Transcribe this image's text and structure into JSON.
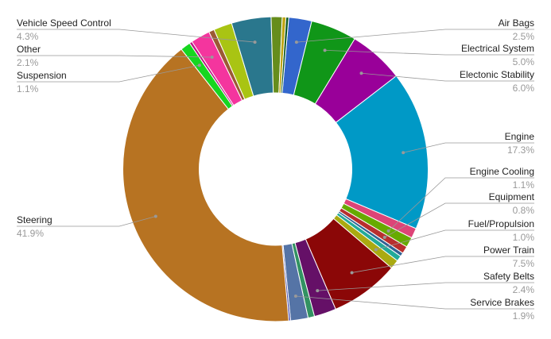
{
  "chart_data": {
    "type": "pie",
    "donut": true,
    "series": [
      {
        "name": "Air Bags",
        "value": 2.5,
        "label": "2.5%",
        "color": "#3366CC",
        "labeled": true
      },
      {
        "name": "Electrical System",
        "value": 5.0,
        "label": "5.0%",
        "color": "#109618",
        "labeled": true
      },
      {
        "name": "Electonic Stability",
        "value": 6.0,
        "label": "6.0%",
        "color": "#990099",
        "labeled": true
      },
      {
        "name": "Engine",
        "value": 17.3,
        "label": "17.3%",
        "color": "#0099C6",
        "labeled": true
      },
      {
        "name": "",
        "value": 1.1,
        "label": "",
        "color": "#DD4477",
        "labeled": false
      },
      {
        "name": "Engine Cooling",
        "value": 1.1,
        "label": "1.1%",
        "color": "#66AA00",
        "labeled": true
      },
      {
        "name": "Equipment",
        "value": 0.8,
        "label": "0.8%",
        "color": "#B82E2E",
        "labeled": true
      },
      {
        "name": "",
        "value": 0.4,
        "label": "",
        "color": "#316395",
        "labeled": false
      },
      {
        "name": "",
        "value": 0.6,
        "label": "",
        "color": "#22AA99",
        "labeled": false
      },
      {
        "name": "Fuel/Propulsion",
        "value": 1.0,
        "label": "1.0%",
        "color": "#AAAA11",
        "labeled": true
      },
      {
        "name": "Power Train",
        "value": 7.5,
        "label": "7.5%",
        "color": "#8B0707",
        "labeled": true
      },
      {
        "name": "Safety Belts",
        "value": 2.4,
        "label": "2.4%",
        "color": "#651067",
        "labeled": true
      },
      {
        "name": "",
        "value": 0.7,
        "label": "",
        "color": "#329262",
        "labeled": false
      },
      {
        "name": "Service Brakes",
        "value": 1.9,
        "label": "1.9%",
        "color": "#5574A6",
        "labeled": true
      },
      {
        "name": "",
        "value": 0.2,
        "label": "",
        "color": "#3B3EAC",
        "labeled": false
      },
      {
        "name": "Steering",
        "value": 41.9,
        "label": "41.9%",
        "color": "#B77322",
        "labeled": true
      },
      {
        "name": "Suspension",
        "value": 1.1,
        "label": "1.1%",
        "color": "#16D620",
        "labeled": true
      },
      {
        "name": "",
        "value": 0.3,
        "label": "",
        "color": "#B91383",
        "labeled": false
      },
      {
        "name": "Other",
        "value": 2.1,
        "label": "2.1%",
        "color": "#F4359E",
        "labeled": false
      },
      {
        "name": "",
        "value": 0.6,
        "label": "",
        "color": "#9C5935",
        "labeled": false
      },
      {
        "name": "",
        "value": 2.0,
        "label": "",
        "color": "#A9C413",
        "labeled": false
      },
      {
        "name": "Vehicle Speed Control",
        "value": 4.3,
        "label": "4.3%",
        "color": "#2A778D",
        "labeled": true
      },
      {
        "name": "",
        "value": 1.2,
        "label": "",
        "color": "#668D1C",
        "labeled": false
      },
      {
        "name": "",
        "value": 0.4,
        "label": "",
        "color": "#BEA413",
        "labeled": false
      },
      {
        "name": "",
        "value": 0.3,
        "label": "",
        "color": "#0C5922",
        "labeled": false
      }
    ],
    "callouts": [
      {
        "name": "Air Bags",
        "label": "2.5%",
        "side": "right"
      },
      {
        "name": "Electrical System",
        "label": "5.0%",
        "side": "right"
      },
      {
        "name": "Electonic Stability",
        "label": "6.0%",
        "side": "right"
      },
      {
        "name": "Engine",
        "label": "17.3%",
        "side": "right"
      },
      {
        "name": "Engine Cooling",
        "label": "1.1%",
        "side": "right"
      },
      {
        "name": "Equipment",
        "label": "0.8%",
        "side": "right"
      },
      {
        "name": "Fuel/Propulsion",
        "label": "1.0%",
        "side": "right"
      },
      {
        "name": "Power Train",
        "label": "7.5%",
        "side": "right"
      },
      {
        "name": "Safety Belts",
        "label": "2.4%",
        "side": "right"
      },
      {
        "name": "Service Brakes",
        "label": "1.9%",
        "side": "right"
      },
      {
        "name": "Vehicle Speed Control",
        "label": "4.3%",
        "side": "left"
      },
      {
        "name": "Other",
        "label": "2.1%",
        "side": "left"
      },
      {
        "name": "Suspension",
        "label": "1.1%",
        "side": "left"
      },
      {
        "name": "Steering",
        "label": "41.9%",
        "side": "left"
      }
    ],
    "legend": "none",
    "colors": {
      "label_text": "#222222",
      "percent_text": "#999999",
      "leader_line": "#999999",
      "background": "#ffffff"
    }
  }
}
